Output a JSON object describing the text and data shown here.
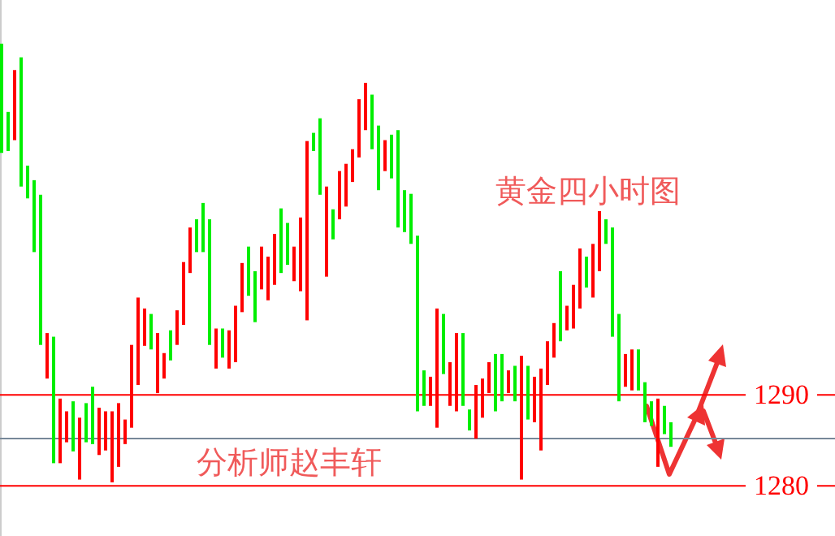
{
  "chart_data": {
    "type": "candlestick",
    "title": "黄金四小时图",
    "annotations": [
      "分析师赵丰轩"
    ],
    "categories": [
      null,
      null,
      null,
      null,
      null,
      null,
      null,
      null,
      null,
      null,
      null,
      null,
      null,
      null,
      null,
      null,
      null,
      null,
      null,
      null,
      null,
      null,
      null,
      null,
      null,
      null,
      null,
      null,
      null,
      null,
      null,
      null,
      null,
      null,
      null,
      null,
      null,
      null,
      null,
      null,
      null,
      null,
      null,
      null,
      null,
      null,
      null,
      null,
      null,
      null,
      null,
      null,
      null,
      null,
      null,
      null,
      null,
      null,
      null,
      null,
      null,
      null,
      null,
      null,
      null,
      null,
      null,
      null,
      null,
      null,
      null,
      null,
      null,
      null,
      null,
      null,
      null,
      null,
      null,
      null,
      null,
      null,
      null,
      null,
      null,
      null,
      null,
      null,
      null,
      null,
      null,
      null,
      null,
      null,
      null,
      null,
      null,
      null,
      null,
      null,
      null,
      null,
      null,
      null
    ],
    "ohlc": [
      [
        1328.6,
        1328.6,
        1316.6,
        1316.6
      ],
      [
        1321.1,
        1321.1,
        1316.8,
        1316.8
      ],
      [
        1318.0,
        1325.7,
        1318.0,
        1325.7
      ],
      [
        1327.1,
        1327.1,
        1312.9,
        1312.9
      ],
      [
        1315.2,
        1315.2,
        1311.6,
        1311.6
      ],
      [
        1313.6,
        1313.6,
        1305.7,
        1305.7
      ],
      [
        1312.0,
        1312.0,
        1295.5,
        1295.5
      ],
      [
        1291.8,
        1296.8,
        1291.8,
        1296.8
      ],
      [
        1296.4,
        1296.4,
        1282.5,
        1282.5
      ],
      [
        1282.5,
        1289.6,
        1282.5,
        1289.6
      ],
      [
        1284.8,
        1288.2,
        1284.8,
        1288.2
      ],
      [
        1289.3,
        1289.3,
        1283.8,
        1283.8
      ],
      [
        1280.7,
        1287.5,
        1280.7,
        1287.5
      ],
      [
        1289.1,
        1289.1,
        1284.8,
        1284.8
      ],
      [
        1290.9,
        1290.9,
        1284.6,
        1284.6
      ],
      [
        1283.4,
        1288.6,
        1283.4,
        1288.6
      ],
      [
        1283.9,
        1288.2,
        1283.9,
        1288.2
      ],
      [
        1280.4,
        1288.2,
        1280.4,
        1288.2
      ],
      [
        1282.1,
        1289.1,
        1282.1,
        1289.1
      ],
      [
        1284.6,
        1287.3,
        1284.6,
        1287.3
      ],
      [
        1286.4,
        1295.5,
        1286.4,
        1295.5
      ],
      [
        1291.1,
        1300.7,
        1291.1,
        1300.7
      ],
      [
        1295.4,
        1299.5,
        1295.4,
        1299.5
      ],
      [
        1298.9,
        1298.9,
        1295.0,
        1295.0
      ],
      [
        1290.2,
        1296.8,
        1290.2,
        1296.8
      ],
      [
        1291.8,
        1294.6,
        1291.8,
        1294.6
      ],
      [
        1297.1,
        1297.1,
        1293.8,
        1293.8
      ],
      [
        1295.5,
        1299.3,
        1295.5,
        1299.3
      ],
      [
        1297.7,
        1304.6,
        1297.7,
        1304.6
      ],
      [
        1303.4,
        1308.4,
        1303.4,
        1308.4
      ],
      [
        1309.3,
        1309.3,
        1305.7,
        1305.7
      ],
      [
        1311.1,
        1311.1,
        1305.7,
        1305.7
      ],
      [
        1309.3,
        1309.3,
        1295.5,
        1295.5
      ],
      [
        1292.9,
        1297.3,
        1292.9,
        1297.3
      ],
      [
        1297.3,
        1297.3,
        1294.1,
        1294.1
      ],
      [
        1292.9,
        1297.1,
        1292.9,
        1297.1
      ],
      [
        1293.6,
        1299.8,
        1293.6,
        1299.8
      ],
      [
        1299.1,
        1304.5,
        1299.1,
        1304.5
      ],
      [
        1306.3,
        1306.3,
        1300.9,
        1300.9
      ],
      [
        1303.6,
        1303.6,
        1298.0,
        1298.0
      ],
      [
        1301.6,
        1306.3,
        1301.6,
        1306.3
      ],
      [
        1300.4,
        1305.2,
        1300.4,
        1305.2
      ],
      [
        1302.1,
        1307.7,
        1302.1,
        1307.7
      ],
      [
        1310.5,
        1310.5,
        1303.4,
        1303.4
      ],
      [
        1308.9,
        1308.9,
        1304.3,
        1304.3
      ],
      [
        1302.5,
        1306.3,
        1302.5,
        1306.3
      ],
      [
        1301.4,
        1309.5,
        1301.4,
        1309.5
      ],
      [
        1298.2,
        1317.9,
        1298.2,
        1317.9
      ],
      [
        1318.8,
        1318.8,
        1316.8,
        1316.8
      ],
      [
        1320.4,
        1320.4,
        1312.0,
        1312.0
      ],
      [
        1303.0,
        1312.9,
        1303.0,
        1312.9
      ],
      [
        1310.4,
        1310.4,
        1307.1,
        1307.1
      ],
      [
        1309.3,
        1314.6,
        1309.3,
        1314.6
      ],
      [
        1310.7,
        1315.4,
        1310.7,
        1315.4
      ],
      [
        1313.4,
        1317.0,
        1313.4,
        1317.0
      ],
      [
        1316.1,
        1322.5,
        1316.1,
        1322.5
      ],
      [
        1319.1,
        1324.3,
        1319.1,
        1324.3
      ],
      [
        1323.0,
        1323.0,
        1317.0,
        1317.0
      ],
      [
        1319.6,
        1319.6,
        1312.5,
        1312.5
      ],
      [
        1314.6,
        1318.0,
        1314.6,
        1318.0
      ],
      [
        1318.6,
        1318.6,
        1313.8,
        1313.8
      ],
      [
        1319.1,
        1319.1,
        1308.4,
        1308.4
      ],
      [
        1312.5,
        1312.5,
        1307.9,
        1307.9
      ],
      [
        1312.1,
        1312.1,
        1306.6,
        1306.6
      ],
      [
        1307.5,
        1307.5,
        1288.2,
        1288.2
      ],
      [
        1292.7,
        1292.7,
        1288.8,
        1288.8
      ],
      [
        1288.8,
        1292.0,
        1288.8,
        1292.0
      ],
      [
        1286.4,
        1299.5,
        1286.4,
        1299.5
      ],
      [
        1298.9,
        1298.9,
        1292.3,
        1292.3
      ],
      [
        1288.8,
        1293.6,
        1288.8,
        1293.6
      ],
      [
        1288.2,
        1296.8,
        1288.2,
        1296.8
      ],
      [
        1296.8,
        1296.8,
        1288.8,
        1288.8
      ],
      [
        1288.4,
        1288.4,
        1286.1,
        1286.1
      ],
      [
        1285.2,
        1291.1,
        1285.2,
        1291.1
      ],
      [
        1287.5,
        1291.8,
        1287.5,
        1291.8
      ],
      [
        1290.2,
        1293.6,
        1290.2,
        1293.6
      ],
      [
        1294.5,
        1294.5,
        1288.2,
        1288.2
      ],
      [
        1294.5,
        1294.5,
        1289.3,
        1289.3
      ],
      [
        1290.2,
        1292.7,
        1290.2,
        1292.7
      ],
      [
        1293.2,
        1293.2,
        1289.3,
        1289.3
      ],
      [
        1280.7,
        1294.3,
        1280.7,
        1294.3
      ],
      [
        1293.2,
        1293.2,
        1287.3,
        1287.3
      ],
      [
        1287.0,
        1292.0,
        1287.0,
        1292.0
      ],
      [
        1283.9,
        1292.9,
        1283.9,
        1292.9
      ],
      [
        1291.1,
        1295.9,
        1291.1,
        1295.9
      ],
      [
        1294.1,
        1297.9,
        1294.1,
        1297.9
      ],
      [
        1303.6,
        1303.6,
        1295.9,
        1295.9
      ],
      [
        1297.1,
        1299.8,
        1297.1,
        1299.8
      ],
      [
        1297.3,
        1302.1,
        1297.3,
        1302.1
      ],
      [
        1299.5,
        1306.1,
        1299.5,
        1306.1
      ],
      [
        1305.2,
        1305.2,
        1301.8,
        1301.8
      ],
      [
        1300.7,
        1306.6,
        1300.7,
        1306.6
      ],
      [
        1303.6,
        1310.2,
        1303.6,
        1310.2
      ],
      [
        1309.3,
        1309.3,
        1306.6,
        1306.6
      ],
      [
        1308.4,
        1308.4,
        1296.4,
        1296.4
      ],
      [
        1298.9,
        1298.9,
        1289.3,
        1289.3
      ],
      [
        1290.9,
        1294.5,
        1290.9,
        1294.5
      ],
      [
        1290.5,
        1295.0,
        1290.5,
        1295.0
      ],
      [
        1295.0,
        1295.0,
        1290.5,
        1290.5
      ],
      [
        1291.4,
        1291.4,
        1287.0,
        1287.0
      ],
      [
        1289.3,
        1289.3,
        1286.6,
        1286.6
      ],
      [
        1282.1,
        1289.6,
        1282.1,
        1289.6
      ],
      [
        1288.8,
        1288.8,
        1285.7,
        1285.7
      ],
      [
        1287.0,
        1287.0,
        1284.3,
        1284.3
      ]
    ],
    "ylim": [
      1274.5,
      1333.4
    ],
    "yticks": [
      1290,
      1280
    ],
    "ref_lines": [
      {
        "axis": "y",
        "value": 1290,
        "color": "#ff0000"
      },
      {
        "axis": "y",
        "value": 1285.2,
        "color": "#778899"
      },
      {
        "axis": "y",
        "value": 1280,
        "color": "#ff0000"
      }
    ]
  }
}
